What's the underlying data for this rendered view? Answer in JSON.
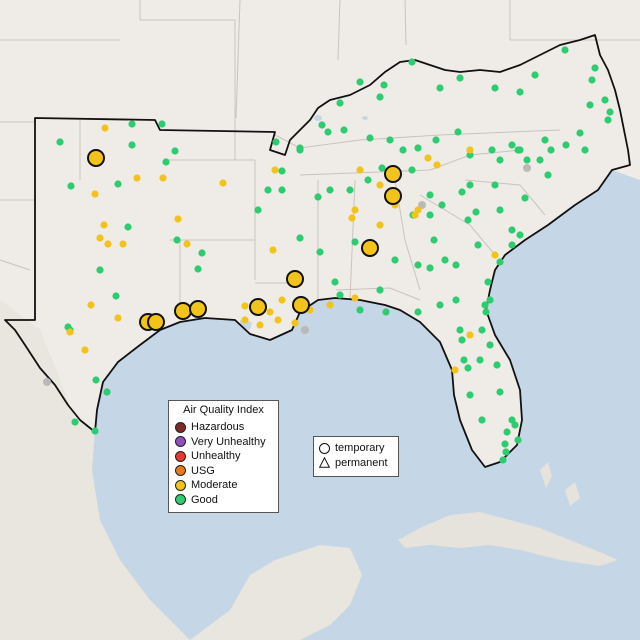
{
  "legend": {
    "title": "Air Quality Index",
    "categories": [
      {
        "label": "Hazardous",
        "color": "#7e2a2a"
      },
      {
        "label": "Very Unhealthy",
        "color": "#8f4fbf"
      },
      {
        "label": "Unhealthy",
        "color": "#e8382b"
      },
      {
        "label": "USG",
        "color": "#e87a1e"
      },
      {
        "label": "Moderate",
        "color": "#f2c318"
      },
      {
        "label": "Good",
        "color": "#2ecc71"
      }
    ]
  },
  "monitor_types": {
    "temporary": "temporary",
    "permanent": "permanent"
  },
  "colors": {
    "ocean": "#c5d6e6",
    "land_us": "#f1eeea",
    "land_other": "#eae6e1",
    "border": "#111111",
    "good": "#2ecc71",
    "moderate": "#f2c318",
    "no_data": "#b9b9b9"
  }
}
